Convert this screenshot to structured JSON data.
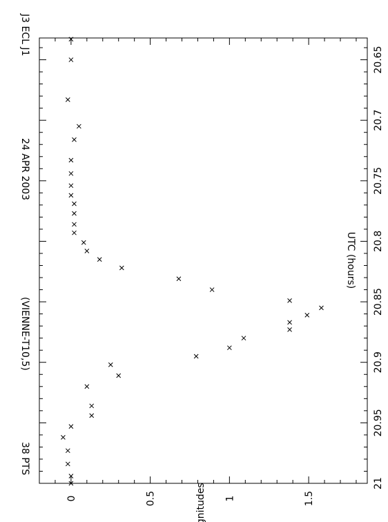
{
  "chart_data": {
    "type": "scatter",
    "title_parts": [
      "J3 ECL J1",
      "24 APR 2003",
      "(VIENNE-T10,5)",
      "38 PTS"
    ],
    "xlabel": "UTC (hours)",
    "ylabel": "Magnitudes",
    "xlim": [
      20.632,
      21.0
    ],
    "ylim": [
      -0.2,
      1.87
    ],
    "y_inverted": false,
    "x_ticks": [
      20.65,
      20.7,
      20.75,
      20.8,
      20.85,
      20.9,
      20.95,
      21
    ],
    "x_tick_labels": [
      "20.65",
      "20.7",
      "20.75",
      "20.8",
      "20.85",
      "20.9",
      "20.95",
      "21"
    ],
    "y_ticks": [
      0,
      0.5,
      1,
      1.5
    ],
    "y_tick_labels": [
      "0",
      "0.5",
      "1",
      "1.5"
    ],
    "marker": "x",
    "grid": false,
    "points": [
      [
        20.633,
        0.0
      ],
      [
        20.65,
        0.0
      ],
      [
        20.683,
        -0.02
      ],
      [
        20.705,
        0.05
      ],
      [
        20.716,
        0.02
      ],
      [
        20.733,
        0.0
      ],
      [
        20.744,
        0.0
      ],
      [
        20.754,
        0.0
      ],
      [
        20.762,
        0.0
      ],
      [
        20.769,
        0.02
      ],
      [
        20.777,
        0.02
      ],
      [
        20.786,
        0.02
      ],
      [
        20.793,
        0.02
      ],
      [
        20.801,
        0.08
      ],
      [
        20.808,
        0.1
      ],
      [
        20.815,
        0.18
      ],
      [
        20.822,
        0.32
      ],
      [
        20.831,
        0.68
      ],
      [
        20.84,
        0.89
      ],
      [
        20.849,
        1.38
      ],
      [
        20.855,
        1.58
      ],
      [
        20.861,
        1.49
      ],
      [
        20.867,
        1.38
      ],
      [
        20.873,
        1.38
      ],
      [
        20.88,
        1.09
      ],
      [
        20.888,
        1.0
      ],
      [
        20.895,
        0.79
      ],
      [
        20.902,
        0.25
      ],
      [
        20.911,
        0.3
      ],
      [
        20.92,
        0.1
      ],
      [
        20.936,
        0.13
      ],
      [
        20.944,
        0.13
      ],
      [
        20.953,
        0.0
      ],
      [
        20.962,
        -0.05
      ],
      [
        20.973,
        -0.02
      ],
      [
        20.984,
        -0.02
      ],
      [
        20.994,
        0.0
      ],
      [
        21.0,
        0.0
      ]
    ]
  }
}
